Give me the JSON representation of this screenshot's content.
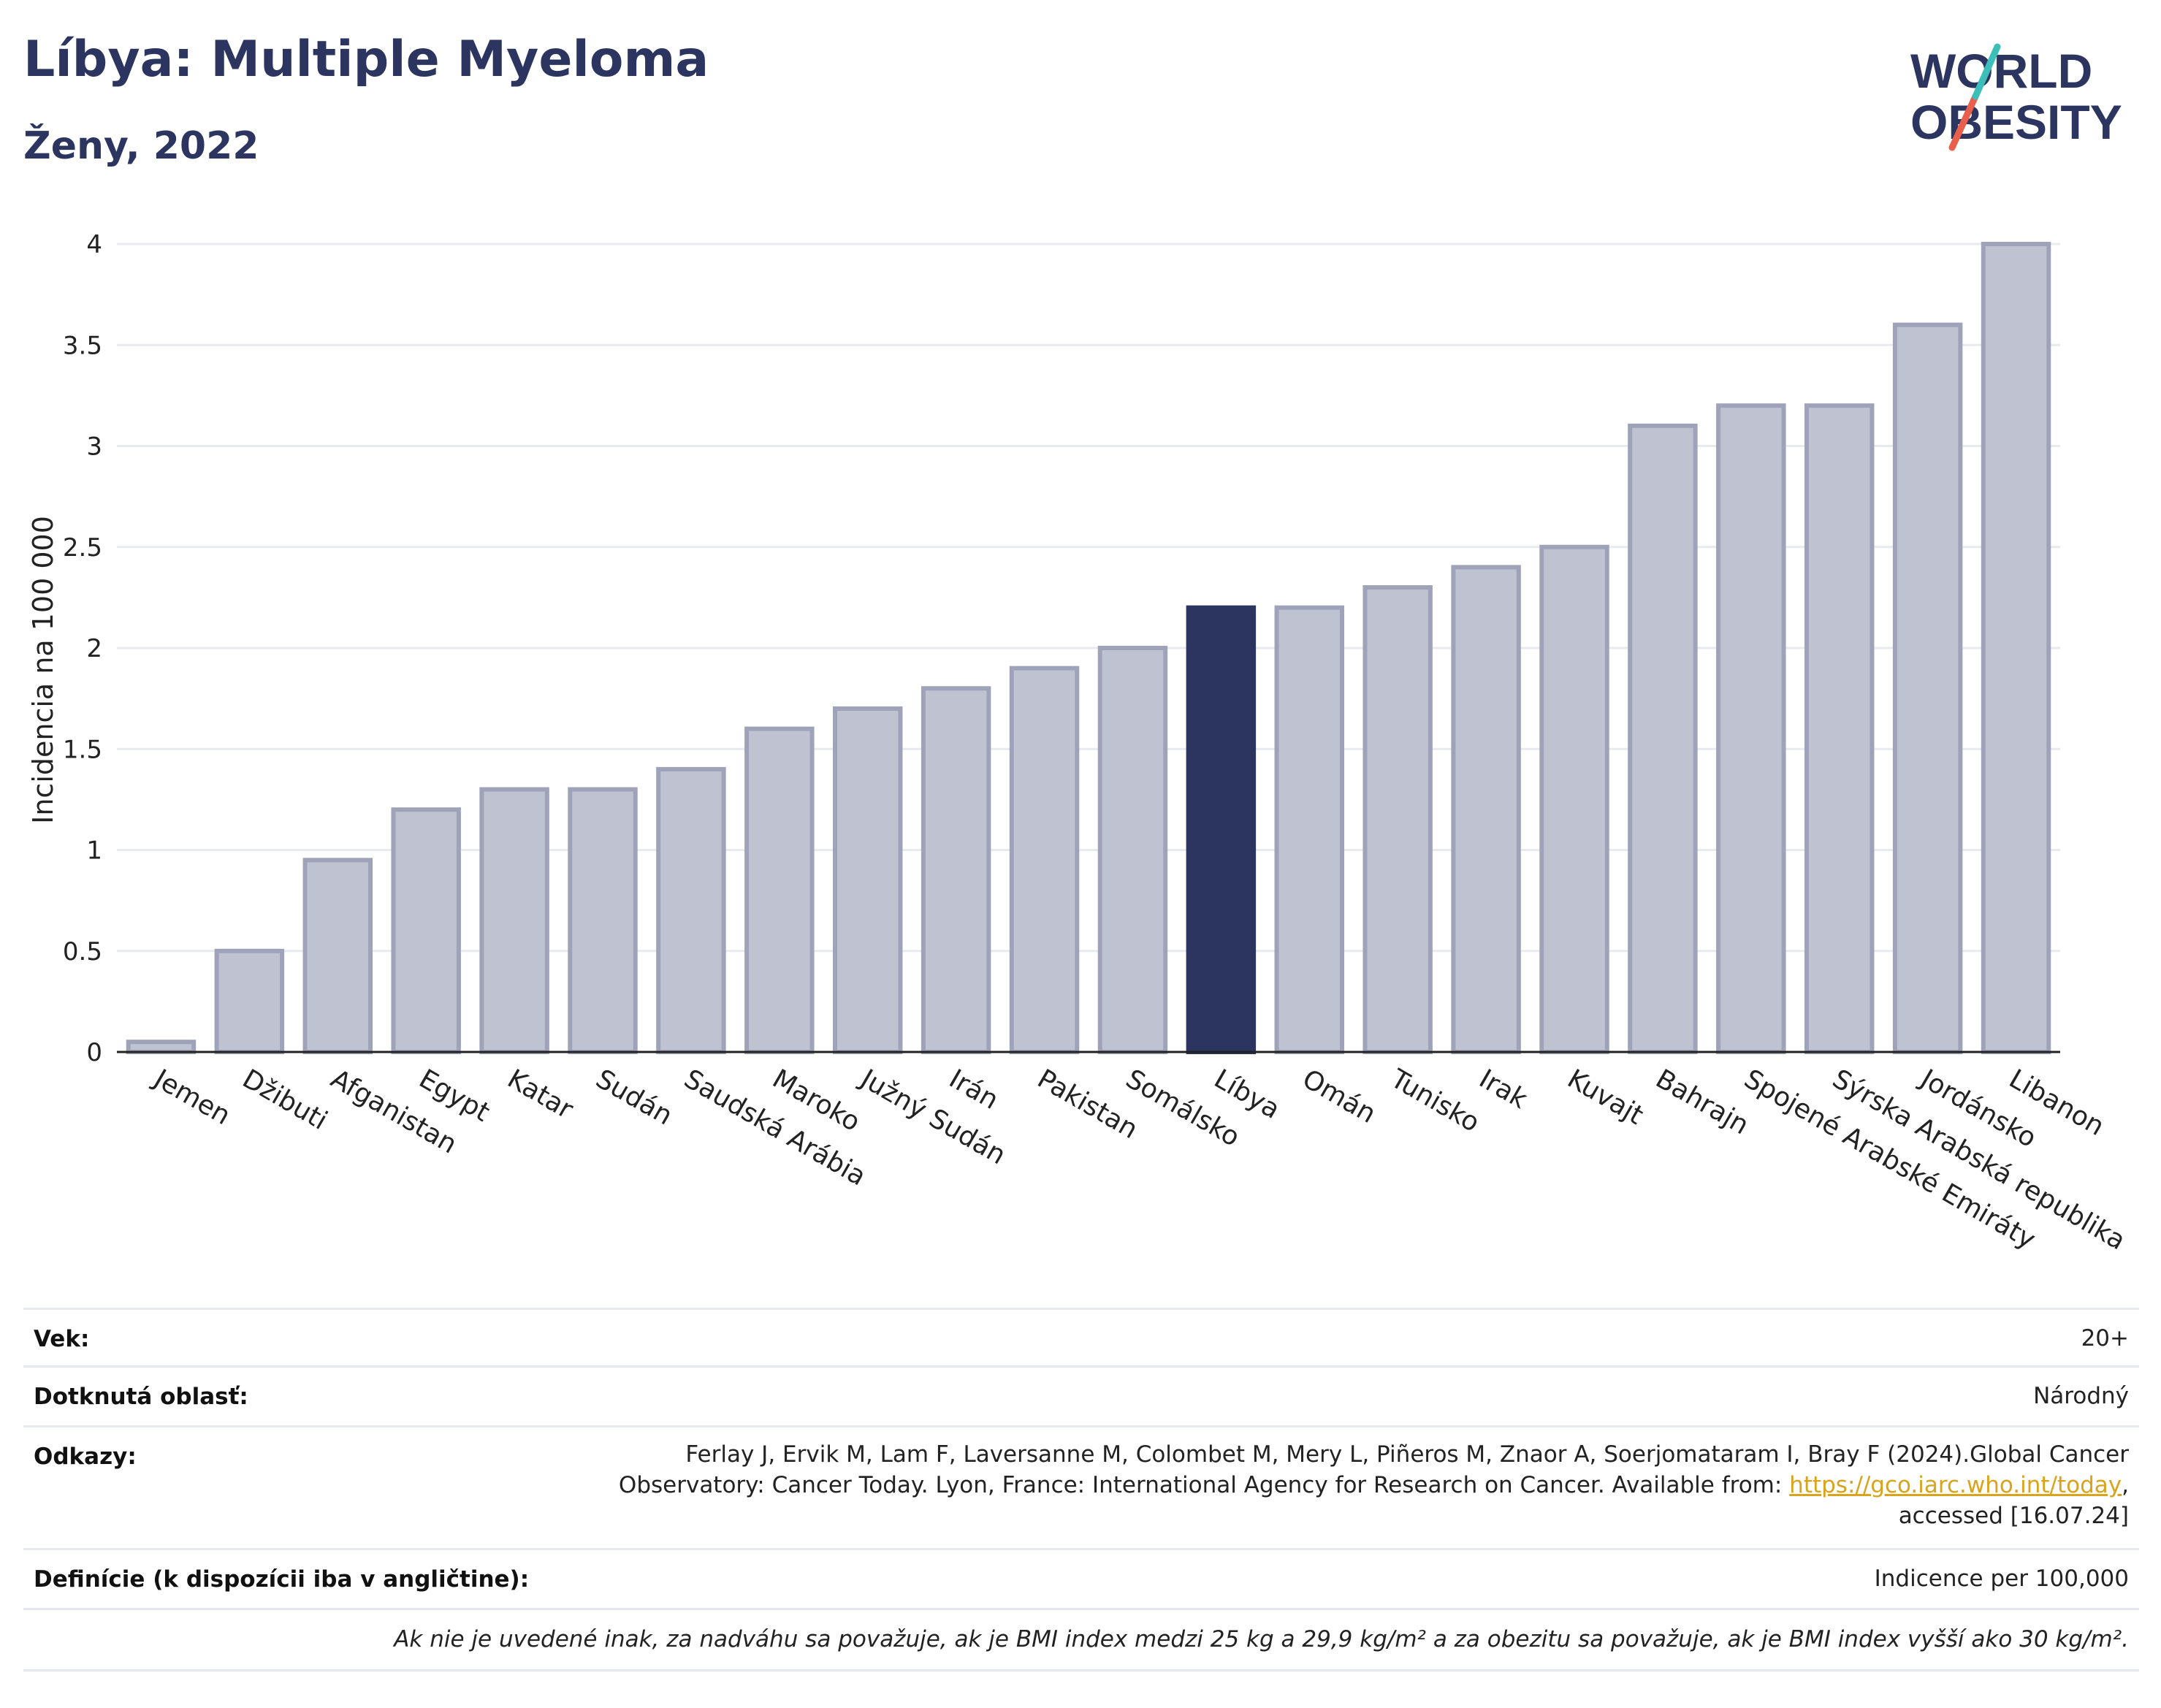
{
  "header": {
    "title": "Líbya: Multiple Myeloma",
    "subtitle": "Ženy, 2022",
    "logo_line1": "WORLD",
    "logo_line2": "OBESITY"
  },
  "colors": {
    "bar": "#bfc2d0",
    "bar_border": "#9ea3ba",
    "highlight": "#2b3560",
    "grid": "#e8eaef",
    "axis": "#222222",
    "logo_slash_teal": "#3bbfb8",
    "logo_slash_red": "#e8604c"
  },
  "chart_data": {
    "type": "bar",
    "ylabel": "Incidencia na 100 000",
    "ylim": [
      0,
      4
    ],
    "yticks": [
      0,
      0.5,
      1,
      1.5,
      2,
      2.5,
      3,
      3.5,
      4
    ],
    "ytick_labels": [
      "0",
      "0.5",
      "1",
      "1.5",
      "2",
      "2.5",
      "3",
      "3.5",
      "4"
    ],
    "grid": true,
    "categories": [
      "Jemen",
      "Džibuti",
      "Afganistan",
      "Egypt",
      "Katar",
      "Sudán",
      "Saudská Arábia",
      "Maroko",
      "Južný Sudán",
      "Irán",
      "Pakistan",
      "Somálsko",
      "Líbya",
      "Omán",
      "Tunisko",
      "Irak",
      "Kuvajt",
      "Bahrajn",
      "Spojené Arabské Emiráty",
      "Sýrska Arabská republika",
      "Jordánsko",
      "Libanon"
    ],
    "values": [
      0.05,
      0.5,
      0.95,
      1.2,
      1.3,
      1.3,
      1.4,
      1.6,
      1.7,
      1.8,
      1.9,
      2.0,
      2.2,
      2.2,
      2.3,
      2.4,
      2.5,
      3.1,
      3.2,
      3.2,
      3.6,
      4.0
    ],
    "highlight": "Líbya"
  },
  "meta": {
    "age_label": "Vek:",
    "age_value": "20+",
    "area_label": "Dotknutá oblasť:",
    "area_value": "Národný",
    "refs_label": "Odkazy:",
    "refs_line1": "Ferlay J, Ervik M, Lam F, Laversanne M, Colombet M, Mery L, Piñeros M, Znaor A, Soerjomataram I, Bray F (2024).Global Cancer",
    "refs_line2": "Observatory: Cancer Today. Lyon, France: International Agency for Research on Cancer. Available from: ",
    "refs_link": "https://gco.iarc.who.int/today",
    "refs_line2_end": ",",
    "refs_line3": "accessed [16.07.24]",
    "def_label": "Definície (k dispozícii iba v angličtine):",
    "def_value": "Indicence per 100,000",
    "note": "Ak nie je uvedené inak, za nadváhu sa považuje, ak je BMI index medzi 25 kg a 29,9 kg/m² a za obezitu sa považuje, ak je BMI index vyšší ako 30 kg/m²."
  }
}
